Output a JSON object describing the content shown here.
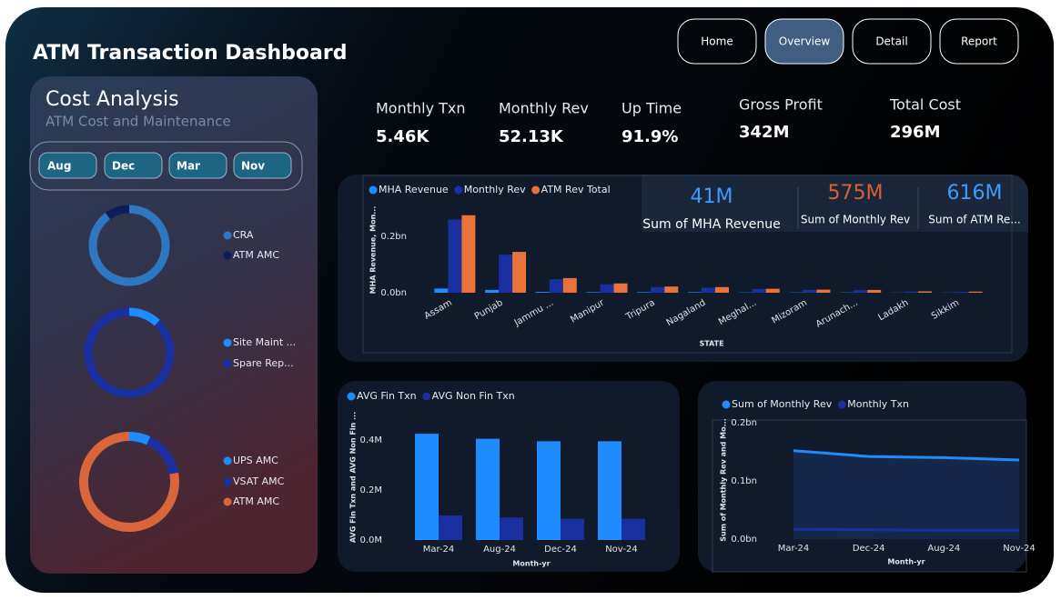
{
  "title": "ATM Transaction Dashboard",
  "nav": [
    "Home",
    "Overview",
    "Detail",
    "Report"
  ],
  "sidebar": {
    "title": "Cost Analysis",
    "subtitle": "ATM Cost and Maintenance",
    "months": [
      "Aug",
      "Dec",
      "Mar",
      "Nov"
    ]
  },
  "kpis": [
    {
      "label": "Monthly Txn",
      "value": "5.46K"
    },
    {
      "label": "Monthly Rev",
      "value": "52.13K"
    },
    {
      "label": "Up Time",
      "value": "91.9%"
    },
    {
      "label": "Gross Profit",
      "value": "342M"
    },
    {
      "label": "Total Cost",
      "value": "296M"
    }
  ],
  "cards": [
    {
      "value": "41M",
      "label": "Sum of MHA Revenue",
      "color": "#3d9bff"
    },
    {
      "value": "575M",
      "label": "Sum of Monthly Rev",
      "color": "#d6613a"
    },
    {
      "value": "616M",
      "label": "Sum of ATM Re...",
      "color": "#3d9bff"
    }
  ],
  "chart_data": [
    {
      "type": "bar",
      "x_label": "STATE",
      "y_label": "MHA Revenue, Mon...",
      "categories": [
        "Assam",
        "Punjab",
        "Jammu ...",
        "Manipur",
        "Tripura",
        "Nagaland",
        "Meghal...",
        "Mizoram",
        "Arunach...",
        "Ladakh",
        "Sikkim"
      ],
      "series": [
        {
          "name": "MHA Revenue",
          "color": "#1e8cff",
          "values": [
            0.015,
            0.01,
            0.003,
            0.002,
            0.002,
            0.002,
            0.001,
            0.001,
            0.001,
            0.0005,
            0.0005
          ]
        },
        {
          "name": "Monthly Rev",
          "color": "#1a2fa0",
          "values": [
            0.26,
            0.135,
            0.048,
            0.03,
            0.02,
            0.018,
            0.013,
            0.01,
            0.009,
            0.004,
            0.003
          ]
        },
        {
          "name": "ATM Rev Total",
          "color": "#e8733a",
          "values": [
            0.275,
            0.145,
            0.052,
            0.033,
            0.022,
            0.02,
            0.014,
            0.011,
            0.01,
            0.005,
            0.004
          ]
        }
      ],
      "ylim": [
        0,
        0.28
      ],
      "yticks": [
        {
          "value": 0,
          "label": "0.0bn"
        },
        {
          "value": 0.2,
          "label": "0.2bn"
        }
      ],
      "grid": false
    },
    {
      "type": "bar",
      "x_label": "Month-yr",
      "y_label": "AVG Fin Txn and AVG Non Fin ...",
      "categories": [
        "Mar-24",
        "Aug-24",
        "Dec-24",
        "Nov-24"
      ],
      "series": [
        {
          "name": "AVG Fin Txn",
          "color": "#1e8cff",
          "values": [
            0.425,
            0.405,
            0.395,
            0.395
          ]
        },
        {
          "name": "AVG Non Fin Txn",
          "color": "#1a2fa0",
          "values": [
            0.098,
            0.09,
            0.085,
            0.085
          ]
        }
      ],
      "ylim": [
        0,
        0.45
      ],
      "yticks": [
        {
          "value": 0,
          "label": "0.0M"
        },
        {
          "value": 0.2,
          "label": "0.2M"
        },
        {
          "value": 0.4,
          "label": "0.4M"
        }
      ],
      "grid": false
    },
    {
      "type": "line",
      "x_label": "Month-yr",
      "y_label": "Sum of Monthly Rev and Mo...",
      "categories": [
        "Mar-24",
        "Dec-24",
        "Aug-24",
        "Nov-24"
      ],
      "series": [
        {
          "name": "Sum of Monthly Rev",
          "color": "#1e8cff",
          "values": [
            0.152,
            0.142,
            0.14,
            0.136
          ]
        },
        {
          "name": "Monthly Txn",
          "color": "#1a2fa0",
          "values": [
            0.017,
            0.016,
            0.015,
            0.015
          ]
        }
      ],
      "ylim": [
        0,
        0.2
      ],
      "yticks": [
        {
          "value": 0,
          "label": "0.0bn"
        },
        {
          "value": 0.1,
          "label": "0.1bn"
        },
        {
          "value": 0.2,
          "label": "0.2bn"
        }
      ],
      "grid": false,
      "area": true
    },
    {
      "type": "donut",
      "categories": [
        "CRA",
        "ATM AMC"
      ],
      "values": [
        90,
        10
      ],
      "colors": [
        "#2f77c0",
        "#0f1d5c"
      ]
    },
    {
      "type": "donut",
      "categories": [
        "Site Maint ...",
        "Spare Rep..."
      ],
      "values": [
        12,
        88
      ],
      "colors": [
        "#1e8cff",
        "#1a2fa0"
      ]
    },
    {
      "type": "donut",
      "categories": [
        "UPS AMC",
        "VSAT AMC",
        "ATM AMC"
      ],
      "values": [
        7,
        15,
        78
      ],
      "colors": [
        "#1e8cff",
        "#1a2fa0",
        "#d8663a"
      ]
    }
  ]
}
